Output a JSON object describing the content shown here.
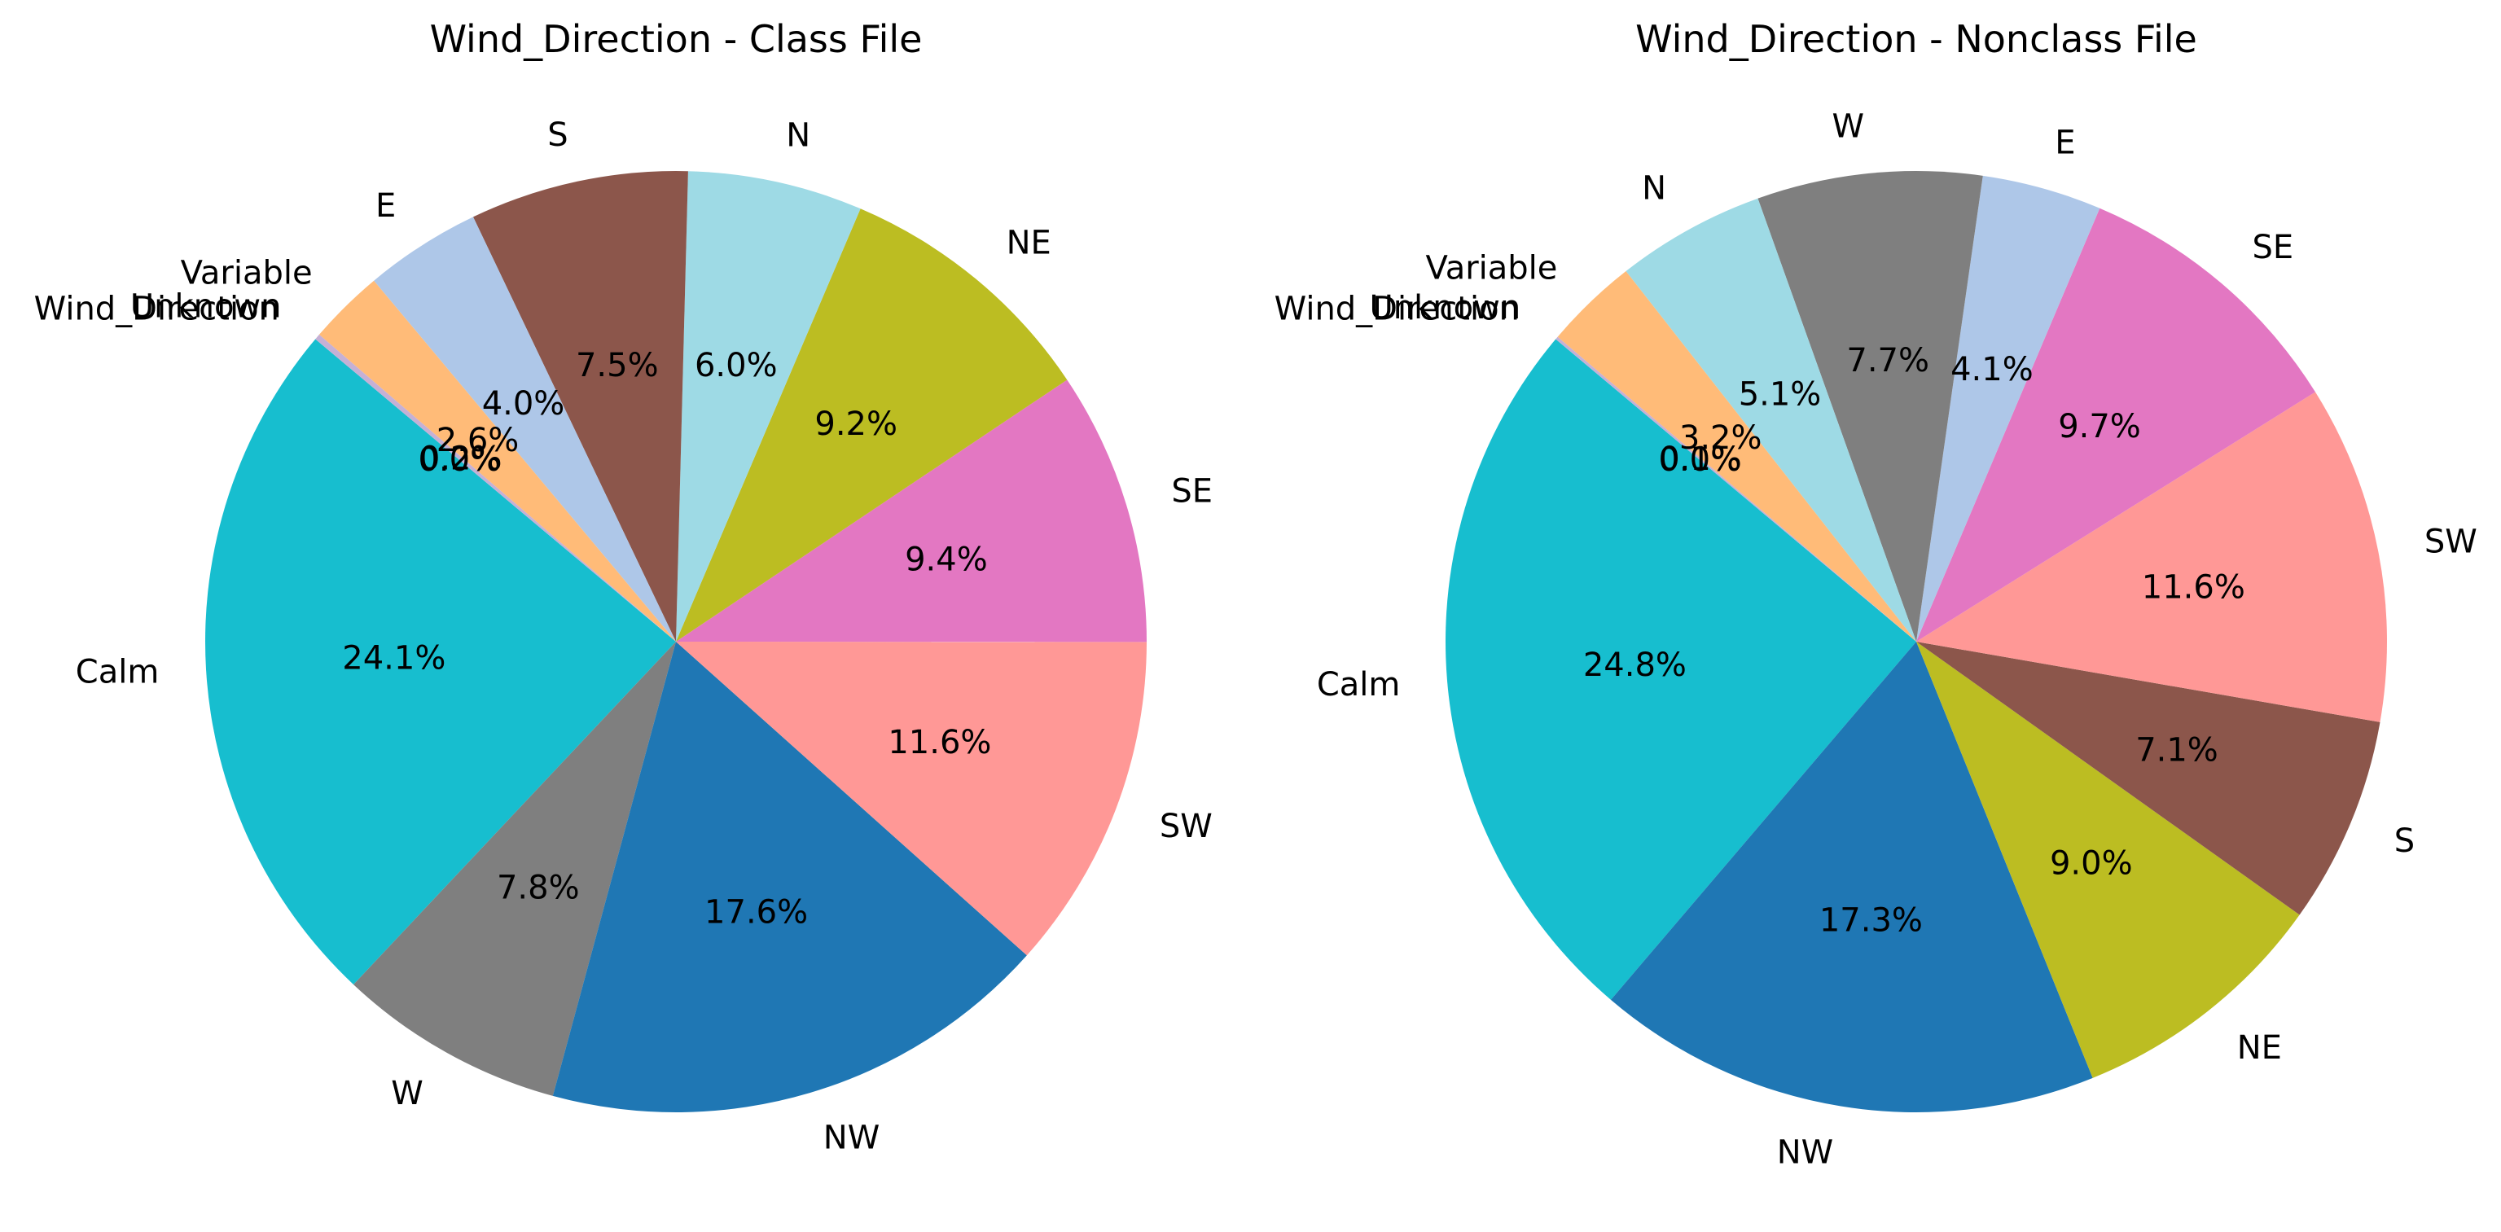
{
  "chart_data": [
    {
      "type": "pie",
      "title": "Wind_Direction - Class File",
      "start_angle": 140,
      "counterclock": true,
      "categories": [
        "Wind_Direction",
        "Calm",
        "W",
        "NW",
        "SW",
        "SE",
        "NE",
        "N",
        "S",
        "E",
        "Variable",
        "Unknown"
      ],
      "values": [
        0.0,
        24.1,
        7.8,
        17.6,
        11.6,
        9.4,
        9.2,
        6.0,
        7.5,
        4.0,
        2.6,
        0.2
      ],
      "value_labels": [
        "0.0%",
        "24.1%",
        "7.8%",
        "17.6%",
        "11.6%",
        "9.4%",
        "9.2%",
        "6.0%",
        "7.5%",
        "4.0%",
        "2.6%",
        "0.2%"
      ],
      "colors": [
        "#c5b0d5",
        "#17becf",
        "#7f7f7f",
        "#1f77b4",
        "#ff9896",
        "#e377c2",
        "#bcbd22",
        "#9edae5",
        "#8c564b",
        "#aec7e8",
        "#ffbb78",
        "#c5b0d5"
      ]
    },
    {
      "type": "pie",
      "title": "Wind_Direction - Nonclass File",
      "start_angle": 140,
      "counterclock": true,
      "categories": [
        "Wind_Direction",
        "Calm",
        "NW",
        "NE",
        "S",
        "SW",
        "SE",
        "E",
        "W",
        "N",
        "Variable",
        "Unknown"
      ],
      "values": [
        0.0,
        24.8,
        17.3,
        9.0,
        7.1,
        11.6,
        9.7,
        4.1,
        7.7,
        5.1,
        3.2,
        0.1
      ],
      "value_labels": [
        "0.0%",
        "24.8%",
        "17.3%",
        "9.0%",
        "7.1%",
        "11.6%",
        "9.7%",
        "4.1%",
        "7.7%",
        "5.1%",
        "3.2%",
        "0.1%"
      ],
      "colors": [
        "#c5b0d5",
        "#17becf",
        "#1f77b4",
        "#bcbd22",
        "#8c564b",
        "#ff9896",
        "#e377c2",
        "#aec7e8",
        "#7f7f7f",
        "#9edae5",
        "#ffbb78",
        "#c5b0d5"
      ]
    }
  ]
}
